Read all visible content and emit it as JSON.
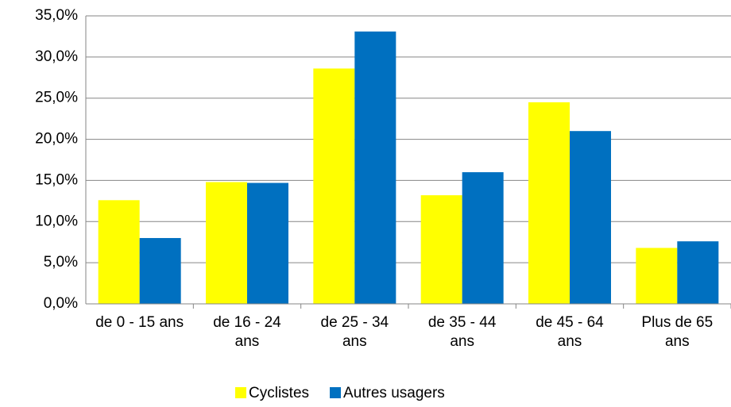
{
  "chart_data": {
    "type": "bar",
    "categories": [
      "de 0 - 15 ans",
      "de 16 - 24 ans",
      "de 25 - 34 ans",
      "de 35 - 44 ans",
      "de 45 - 64 ans",
      "Plus de 65 ans"
    ],
    "series": [
      {
        "name": "Cyclistes",
        "color": "#ffff00",
        "values": [
          12.6,
          14.8,
          28.6,
          13.2,
          24.5,
          6.8
        ]
      },
      {
        "name": "Autres usagers",
        "color": "#0070c0",
        "values": [
          8.0,
          14.7,
          33.1,
          16.0,
          21.0,
          7.6
        ]
      }
    ],
    "ylim": [
      0,
      35
    ],
    "yticks": [
      {
        "value": 0,
        "label": "0,0%"
      },
      {
        "value": 5,
        "label": "5,0%"
      },
      {
        "value": 10,
        "label": "10,0%"
      },
      {
        "value": 15,
        "label": "15,0%"
      },
      {
        "value": 20,
        "label": "20,0%"
      },
      {
        "value": 25,
        "label": "25,0%"
      },
      {
        "value": 30,
        "label": "30,0%"
      },
      {
        "value": 35,
        "label": "35,0%"
      }
    ],
    "grid": true,
    "legend": "bottom"
  }
}
